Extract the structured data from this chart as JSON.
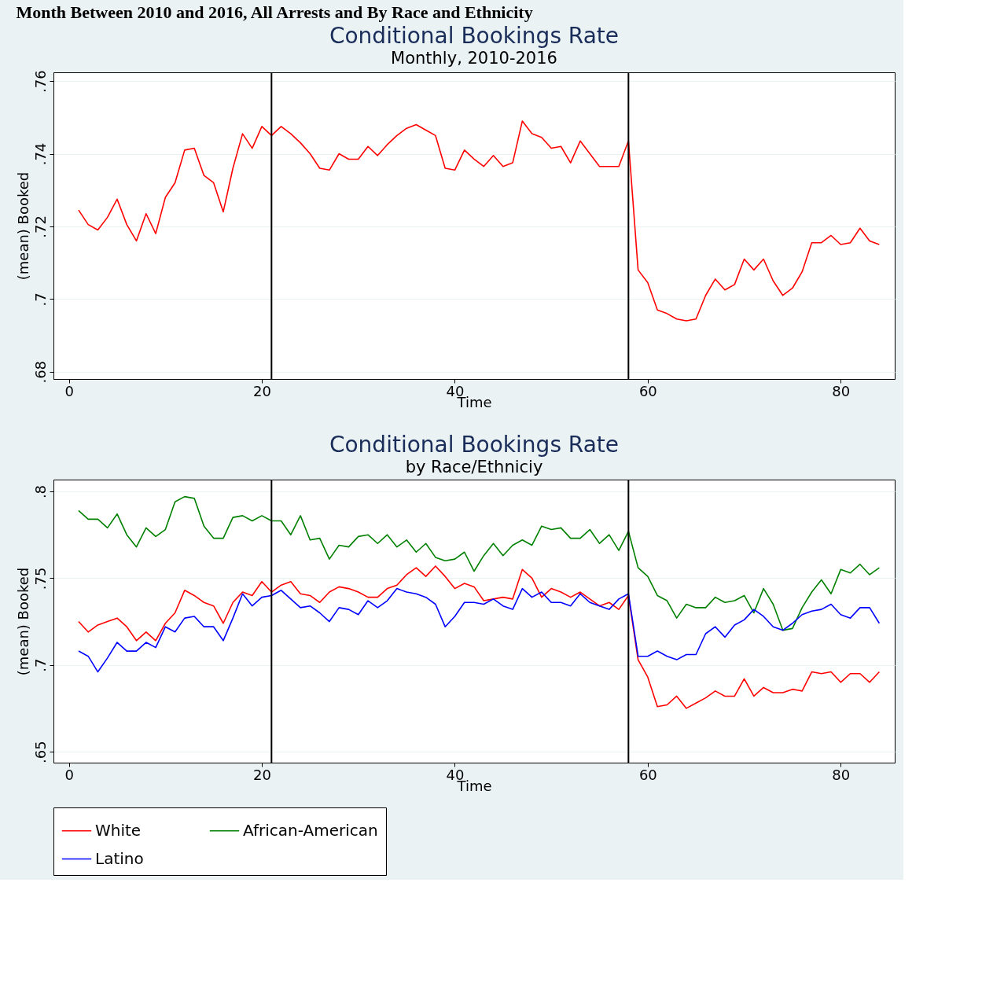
{
  "chart_data": [
    {
      "type": "line",
      "title": "Conditional Bookings Rate",
      "subtitle": "Monthly, 2010-2016",
      "xlabel": "Time",
      "ylabel": "(mean) Booked",
      "annotations": [
        "Month Between 2010 and 2016, All Arrests and By Race and Ethnicity"
      ],
      "x": [
        1,
        2,
        3,
        4,
        5,
        6,
        7,
        8,
        9,
        10,
        11,
        12,
        13,
        14,
        15,
        16,
        17,
        18,
        19,
        20,
        21,
        22,
        23,
        24,
        25,
        26,
        27,
        28,
        29,
        30,
        31,
        32,
        33,
        34,
        35,
        36,
        37,
        38,
        39,
        40,
        41,
        42,
        43,
        44,
        45,
        46,
        47,
        48,
        49,
        50,
        51,
        52,
        53,
        54,
        55,
        56,
        57,
        58,
        59,
        60,
        61,
        62,
        63,
        64,
        65,
        66,
        67,
        68,
        69,
        70,
        71,
        72,
        73,
        74,
        75,
        76,
        77,
        78,
        79,
        80,
        81,
        82,
        83,
        84
      ],
      "series": [
        {
          "color": "#ff0000",
          "values": [
            0.7245,
            0.7205,
            0.719,
            0.7225,
            0.7275,
            0.7205,
            0.716,
            0.7235,
            0.718,
            0.728,
            0.732,
            0.741,
            0.7415,
            0.734,
            0.732,
            0.724,
            0.736,
            0.7455,
            0.7415,
            0.7475,
            0.745,
            0.7475,
            0.7455,
            0.743,
            0.74,
            0.736,
            0.7355,
            0.74,
            0.7385,
            0.7385,
            0.742,
            0.7395,
            0.7425,
            0.745,
            0.747,
            0.748,
            0.7465,
            0.745,
            0.736,
            0.7355,
            0.741,
            0.7385,
            0.7365,
            0.7395,
            0.7365,
            0.7375,
            0.749,
            0.7455,
            0.7445,
            0.7415,
            0.742,
            0.7375,
            0.7435,
            0.74,
            0.7365,
            0.7365,
            0.7365,
            0.7435,
            0.708,
            0.7045,
            0.697,
            0.696,
            0.6945,
            0.694,
            0.6945,
            0.701,
            0.7055,
            0.7025,
            0.704,
            0.711,
            0.708,
            0.711,
            0.705,
            0.701,
            0.703,
            0.7075,
            0.7155,
            0.7155,
            0.7175,
            0.715,
            0.7155,
            0.7195,
            0.716,
            0.715
          ]
        }
      ],
      "xlim": [
        -1.6,
        85.6
      ],
      "xticks": [
        0,
        20,
        40,
        60,
        80
      ],
      "ylim": [
        0.678,
        0.7624
      ],
      "yticks": [
        {
          "value": 0.68,
          "label": ".68"
        },
        {
          "value": 0.7,
          "label": ".7"
        },
        {
          "value": 0.72,
          "label": ".72"
        },
        {
          "value": 0.74,
          "label": ".74"
        },
        {
          "value": 0.76,
          "label": ".76"
        }
      ],
      "ref_lines": [
        {
          "axis": "x",
          "value": 21,
          "color": "#000000"
        },
        {
          "axis": "x",
          "value": 58,
          "color": "#000000"
        }
      ],
      "grid": "y",
      "marker": "none",
      "line_style": "solid",
      "legend": false
    },
    {
      "type": "line",
      "title": "Conditional Bookings Rate",
      "subtitle": "by Race/Ethniciy",
      "xlabel": "Time",
      "ylabel": "(mean) Booked",
      "x": [
        1,
        2,
        3,
        4,
        5,
        6,
        7,
        8,
        9,
        10,
        11,
        12,
        13,
        14,
        15,
        16,
        17,
        18,
        19,
        20,
        21,
        22,
        23,
        24,
        25,
        26,
        27,
        28,
        29,
        30,
        31,
        32,
        33,
        34,
        35,
        36,
        37,
        38,
        39,
        40,
        41,
        42,
        43,
        44,
        45,
        46,
        47,
        48,
        49,
        50,
        51,
        52,
        53,
        54,
        55,
        56,
        57,
        58,
        59,
        60,
        61,
        62,
        63,
        64,
        65,
        66,
        67,
        68,
        69,
        70,
        71,
        72,
        73,
        74,
        75,
        76,
        77,
        78,
        79,
        80,
        81,
        82,
        83,
        84
      ],
      "series": [
        {
          "name": "White",
          "color": "#ff0000",
          "values": [
            0.725,
            0.719,
            0.723,
            0.725,
            0.727,
            0.722,
            0.714,
            0.719,
            0.714,
            0.724,
            0.73,
            0.743,
            0.74,
            0.736,
            0.734,
            0.724,
            0.736,
            0.742,
            0.74,
            0.748,
            0.742,
            0.746,
            0.748,
            0.741,
            0.74,
            0.736,
            0.742,
            0.745,
            0.744,
            0.742,
            0.739,
            0.739,
            0.744,
            0.746,
            0.752,
            0.756,
            0.751,
            0.757,
            0.751,
            0.744,
            0.747,
            0.745,
            0.737,
            0.738,
            0.739,
            0.738,
            0.755,
            0.75,
            0.739,
            0.744,
            0.742,
            0.739,
            0.742,
            0.738,
            0.734,
            0.736,
            0.732,
            0.74,
            0.703,
            0.693,
            0.676,
            0.677,
            0.682,
            0.675,
            0.678,
            0.681,
            0.685,
            0.682,
            0.682,
            0.692,
            0.682,
            0.687,
            0.684,
            0.684,
            0.686,
            0.685,
            0.696,
            0.695,
            0.696,
            0.69,
            0.695,
            0.695,
            0.69,
            0.696
          ]
        },
        {
          "name": "African-American",
          "color": "#008000",
          "values": [
            0.789,
            0.784,
            0.784,
            0.779,
            0.787,
            0.775,
            0.768,
            0.779,
            0.774,
            0.778,
            0.794,
            0.797,
            0.796,
            0.78,
            0.773,
            0.773,
            0.785,
            0.786,
            0.783,
            0.786,
            0.783,
            0.783,
            0.775,
            0.786,
            0.772,
            0.773,
            0.761,
            0.769,
            0.768,
            0.774,
            0.775,
            0.77,
            0.775,
            0.768,
            0.772,
            0.765,
            0.77,
            0.762,
            0.76,
            0.761,
            0.765,
            0.754,
            0.763,
            0.77,
            0.763,
            0.769,
            0.772,
            0.769,
            0.78,
            0.778,
            0.779,
            0.773,
            0.773,
            0.778,
            0.77,
            0.775,
            0.766,
            0.777,
            0.756,
            0.751,
            0.74,
            0.737,
            0.727,
            0.735,
            0.733,
            0.733,
            0.739,
            0.736,
            0.737,
            0.74,
            0.73,
            0.744,
            0.735,
            0.72,
            0.721,
            0.733,
            0.742,
            0.749,
            0.741,
            0.755,
            0.753,
            0.758,
            0.752,
            0.756
          ]
        },
        {
          "name": "Latino",
          "color": "#0000ff",
          "values": [
            0.708,
            0.705,
            0.696,
            0.704,
            0.713,
            0.708,
            0.708,
            0.713,
            0.71,
            0.722,
            0.719,
            0.727,
            0.728,
            0.722,
            0.722,
            0.714,
            0.727,
            0.741,
            0.734,
            0.739,
            0.74,
            0.743,
            0.738,
            0.733,
            0.734,
            0.73,
            0.725,
            0.733,
            0.732,
            0.729,
            0.737,
            0.733,
            0.737,
            0.744,
            0.742,
            0.741,
            0.739,
            0.735,
            0.722,
            0.728,
            0.736,
            0.736,
            0.735,
            0.738,
            0.734,
            0.732,
            0.744,
            0.739,
            0.742,
            0.736,
            0.736,
            0.734,
            0.741,
            0.736,
            0.734,
            0.732,
            0.738,
            0.741,
            0.705,
            0.705,
            0.708,
            0.705,
            0.703,
            0.706,
            0.706,
            0.718,
            0.722,
            0.716,
            0.723,
            0.726,
            0.732,
            0.728,
            0.722,
            0.72,
            0.724,
            0.729,
            0.731,
            0.732,
            0.735,
            0.729,
            0.727,
            0.733,
            0.733,
            0.724
          ]
        }
      ],
      "xlim": [
        -1.6,
        85.6
      ],
      "xticks": [
        0,
        20,
        40,
        60,
        80
      ],
      "ylim": [
        0.6437,
        0.8068
      ],
      "yticks": [
        {
          "value": 0.65,
          "label": ".65"
        },
        {
          "value": 0.7,
          "label": ".7"
        },
        {
          "value": 0.75,
          "label": ".75"
        },
        {
          "value": 0.8,
          "label": ".8"
        }
      ],
      "ref_lines": [
        {
          "axis": "x",
          "value": 21,
          "color": "#000000"
        },
        {
          "axis": "x",
          "value": 58,
          "color": "#000000"
        }
      ],
      "grid": "y",
      "marker": "none",
      "line_style": "solid",
      "legend": "bottom"
    }
  ]
}
